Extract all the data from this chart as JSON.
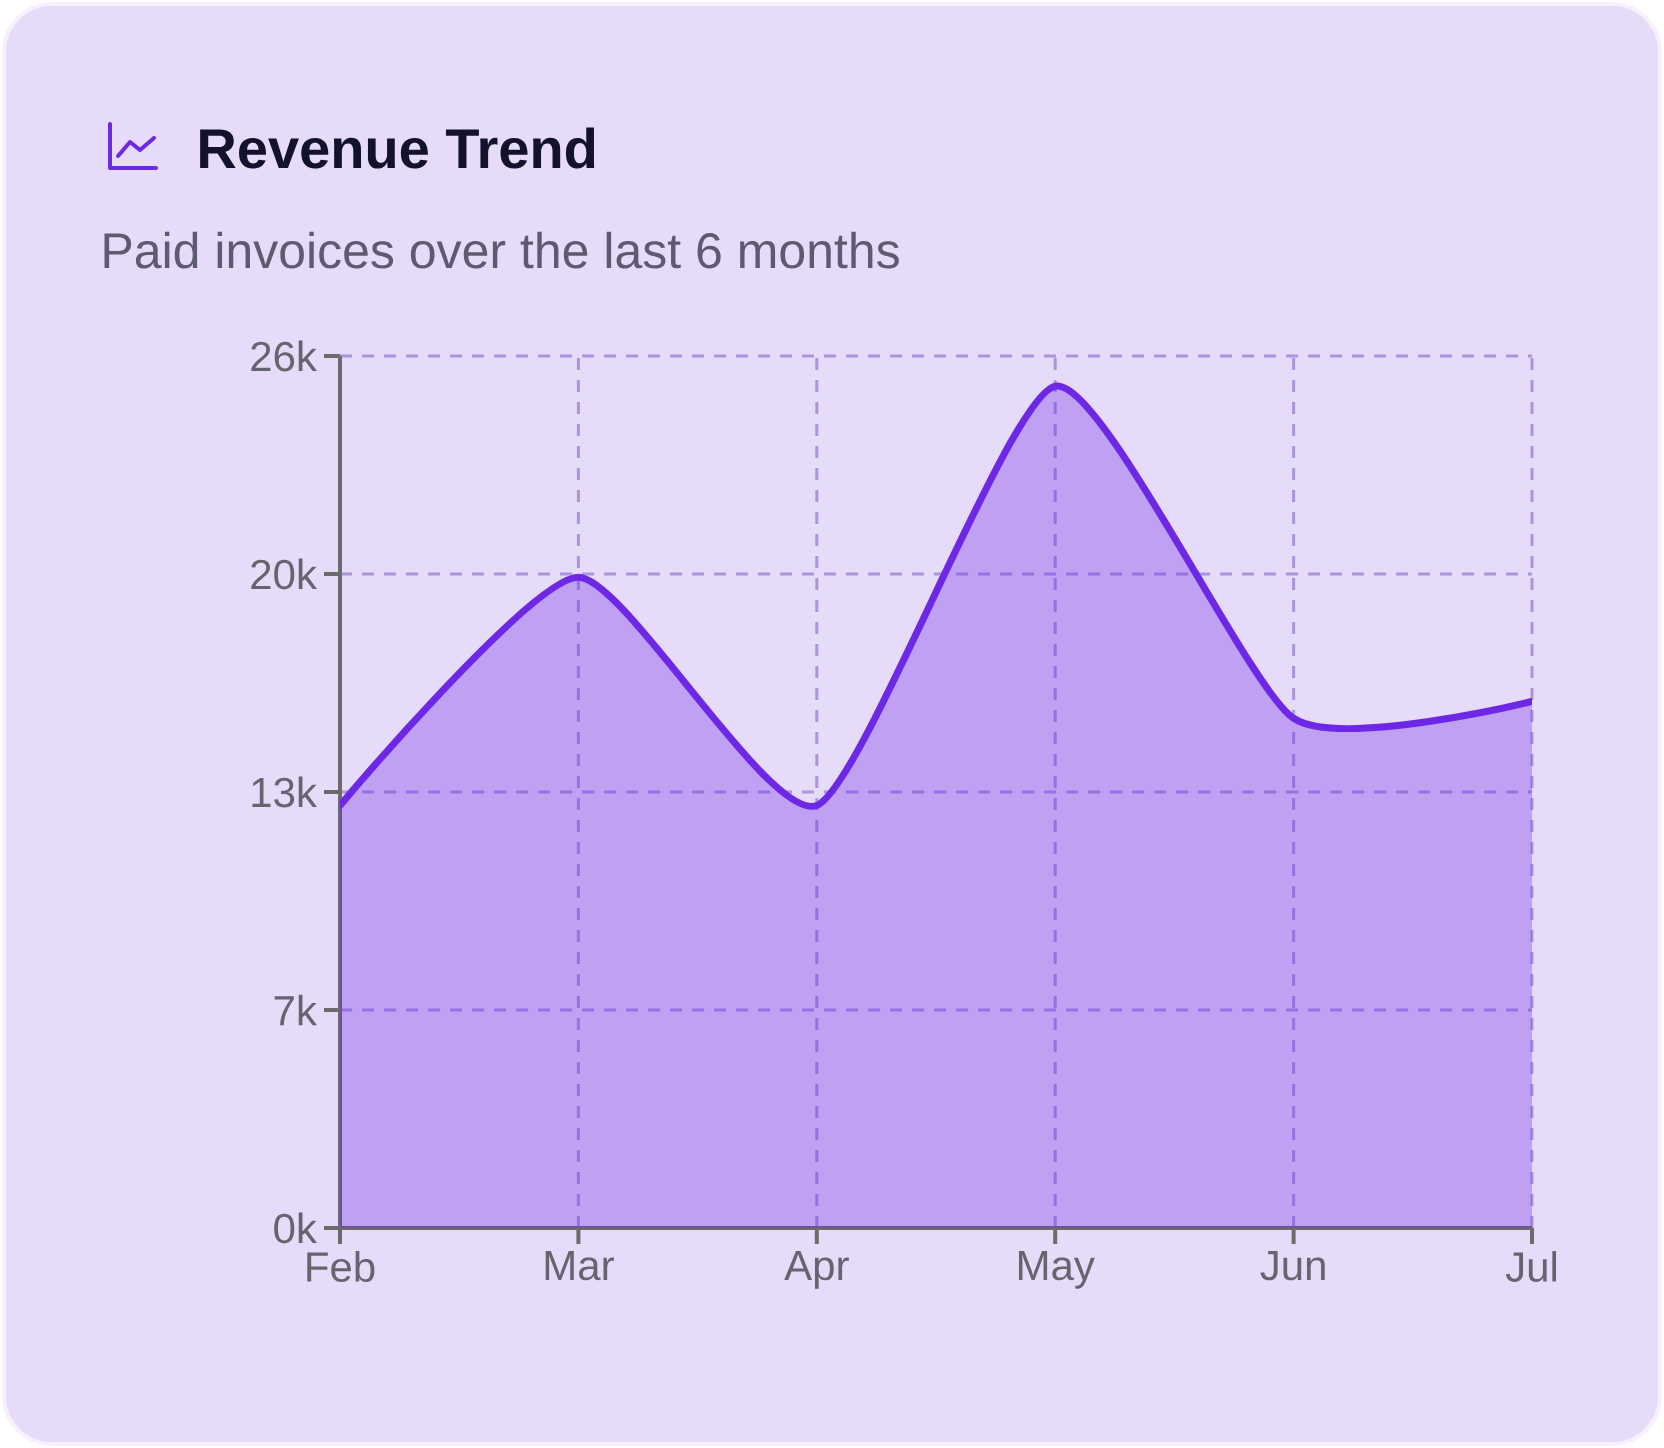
{
  "chart_data": {
    "type": "area",
    "title": "Revenue Trend",
    "subtitle": "Paid invoices over the last 6 months",
    "categories": [
      "Feb",
      "Mar",
      "Apr",
      "May",
      "Jun",
      "Jul"
    ],
    "series": [
      {
        "color": "#6d28e6",
        "values": [
          12600,
          19400,
          12600,
          25100,
          15200,
          15700
        ]
      }
    ],
    "ylim": [
      0,
      26000
    ],
    "yticks": [
      {
        "value": 0,
        "label": "0k"
      },
      {
        "value": 6500,
        "label": "7k"
      },
      {
        "value": 13000,
        "label": "13k"
      },
      {
        "value": 19500,
        "label": "20k"
      },
      {
        "value": 26000,
        "label": "26k"
      }
    ],
    "grid": true
  }
}
